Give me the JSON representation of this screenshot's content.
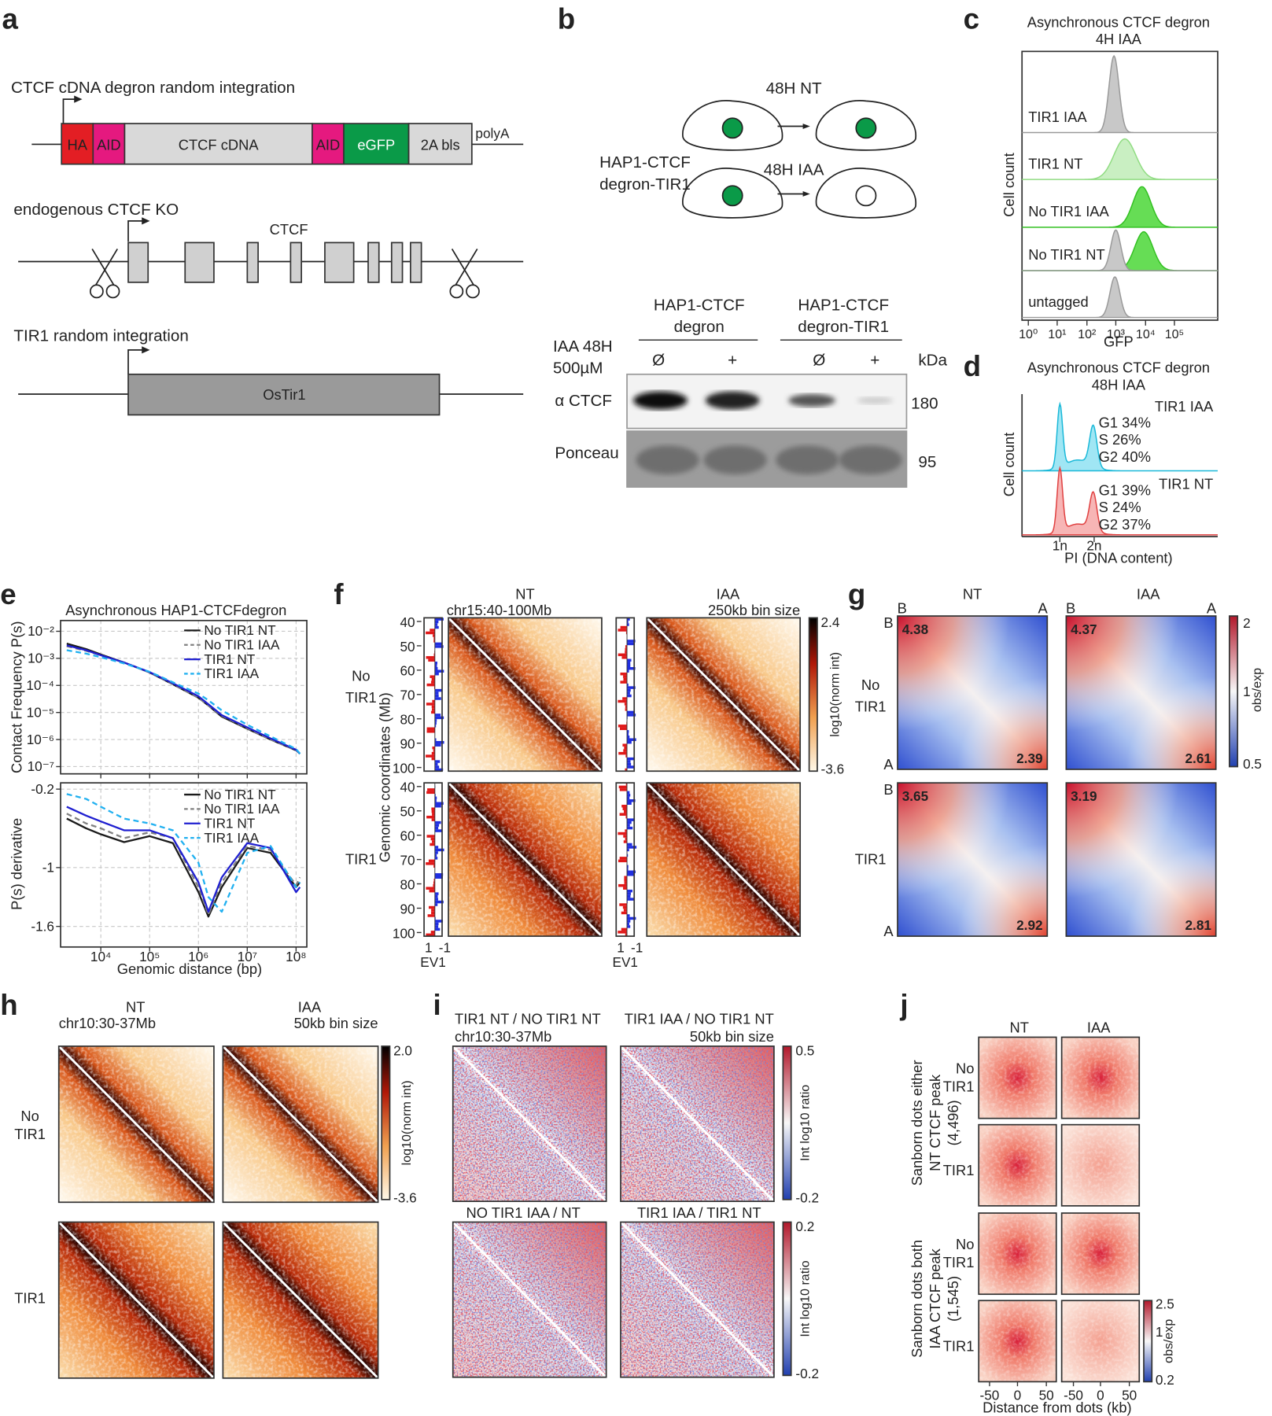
{
  "panels": {
    "a": {
      "label": "a",
      "cdna_title": "CTCF cDNA degron random integration",
      "cdna_parts": [
        "HA",
        "AID",
        "CTCF cDNA",
        "AID",
        "eGFP",
        "2A bls"
      ],
      "polyA": "polyA",
      "ko_title": "endogenous CTCF KO",
      "gene": "CTCF",
      "tir1_title": "TIR1 random integration",
      "tir1_box": "OsTir1"
    },
    "b": {
      "label": "b",
      "nt": "48H NT",
      "iaa": "48H IAA",
      "cell_line": [
        "HAP1-CTCF",
        "degron-TIR1"
      ],
      "lane_groups": [
        [
          "HAP1-CTCF",
          "degron"
        ],
        [
          "HAP1-CTCF",
          "degron-TIR1"
        ]
      ],
      "treatment": [
        "IAA 48H",
        "500µM"
      ],
      "lanes": [
        "Ø",
        "+",
        "Ø",
        "+"
      ],
      "kda": "kDa",
      "rows": [
        "α CTCF",
        "Ponceau"
      ],
      "sizes": [
        "180",
        "95"
      ]
    },
    "c": {
      "label": "c",
      "title": [
        "Asynchronous CTCF degron",
        "4H IAA"
      ],
      "ylabel": "Cell count",
      "xlabel": "GFP",
      "tracks": [
        "TIR1 IAA",
        "TIR1 NT",
        "No TIR1 IAA",
        "No TIR1 NT",
        "untagged"
      ],
      "xticks": [
        "10⁰",
        "10¹",
        "10²",
        "10³",
        "10⁴",
        "10⁵"
      ]
    },
    "d": {
      "label": "d",
      "title": [
        "Asynchronous CTCF degron",
        "48H IAA"
      ],
      "ylabel": "Cell count",
      "xlabel": "PI (DNA content)",
      "xticks": [
        "1n",
        "2n"
      ],
      "tracks": [
        {
          "name": "TIR1 IAA",
          "stats": [
            "G1 34%",
            "S 26%",
            "G2 40%"
          ]
        },
        {
          "name": "TIR1 NT",
          "stats": [
            "G1 39%",
            "S 24%",
            "G2 37%"
          ]
        }
      ]
    },
    "e": {
      "label": "e",
      "title": "Asynchronous HAP1-CTCFdegron",
      "xlabel": "Genomic distance (bp)",
      "log_x": true,
      "grid": true,
      "x": [
        2000,
        5000,
        10000,
        30000,
        100000,
        300000,
        1000000,
        1600000,
        3000000,
        10000000,
        30000000,
        100000000,
        120000000
      ],
      "xlim": [
        1500,
        166000000
      ],
      "xticks": [
        {
          "value": 10000,
          "label": "10⁴"
        },
        {
          "value": 100000,
          "label": "10⁵"
        },
        {
          "value": 1000000,
          "label": "10⁶"
        },
        {
          "value": 10000000,
          "label": "10⁷"
        },
        {
          "value": 100000000,
          "label": "10⁸"
        }
      ],
      "top": {
        "ylabel": "Contact Frequency P(s)",
        "log_y": true,
        "ylim": [
          5.4e-08,
          0.025
        ],
        "yticks": [
          {
            "value": 0.01,
            "label": "10⁻²"
          },
          {
            "value": 0.001,
            "label": "10⁻³"
          },
          {
            "value": 0.0001,
            "label": "10⁻⁴"
          },
          {
            "value": 1e-05,
            "label": "10⁻⁵"
          },
          {
            "value": 1e-06,
            "label": "10⁻⁶"
          },
          {
            "value": 1e-07,
            "label": "10⁻⁷"
          }
        ],
        "series": [
          {
            "name": "No TIR1 NT",
            "color": "#1a1a1a",
            "dash": false,
            "values": [
              0.0035,
              0.0022,
              0.0014,
              0.0007,
              0.0003,
              0.00011,
              3.5e-05,
              1.8e-05,
              7e-06,
              2.5e-06,
              1e-06,
              4e-07,
              3e-07
            ]
          },
          {
            "name": "No TIR1 IAA",
            "color": "#808080",
            "dash": true,
            "values": [
              0.0028,
              0.0019,
              0.0013,
              0.0007,
              0.0003,
              0.00011,
              3.5e-05,
              1.8e-05,
              7.5e-06,
              2.6e-06,
              1e-06,
              4e-07,
              3e-07
            ]
          },
          {
            "name": "TIR1 NT",
            "color": "#1f1fd0",
            "dash": false,
            "values": [
              0.003,
              0.002,
              0.0013,
              0.0007,
              0.00031,
              0.00012,
              4e-05,
              2e-05,
              8e-06,
              2.8e-06,
              1.1e-06,
              4.2e-07,
              3e-07
            ]
          },
          {
            "name": "TIR1 IAA",
            "color": "#20b0f0",
            "dash": true,
            "values": [
              0.002,
              0.0015,
              0.0011,
              0.00065,
              0.00032,
              0.00013,
              5e-05,
              2.8e-05,
              1.2e-05,
              3.5e-06,
              1.3e-06,
              4.5e-07,
              3e-07
            ]
          }
        ]
      },
      "bottom": {
        "ylabel": "P(s) derivative",
        "log_y": false,
        "ylim": [
          -1.81,
          -0.136
        ],
        "yticks": [
          -0.2,
          -1,
          -1.6
        ],
        "series": [
          {
            "name": "No TIR1 NT",
            "color": "#1a1a1a",
            "dash": false,
            "values": [
              -0.5,
              -0.6,
              -0.66,
              -0.74,
              -0.68,
              -0.75,
              -1.25,
              -1.5,
              -1.2,
              -0.8,
              -0.85,
              -1.2,
              -1.15
            ]
          },
          {
            "name": "No TIR1 IAA",
            "color": "#808080",
            "dash": true,
            "values": [
              -0.45,
              -0.55,
              -0.6,
              -0.7,
              -0.64,
              -0.7,
              -1.2,
              -1.48,
              -1.15,
              -0.78,
              -0.82,
              -1.18,
              -1.1
            ]
          },
          {
            "name": "TIR1 NT",
            "color": "#1f1fd0",
            "dash": false,
            "values": [
              -0.38,
              -0.47,
              -0.53,
              -0.62,
              -0.62,
              -0.7,
              -1.15,
              -1.45,
              -1.1,
              -0.75,
              -0.8,
              -1.25,
              -1.2
            ]
          },
          {
            "name": "TIR1 IAA",
            "color": "#20b0f0",
            "dash": true,
            "values": [
              -0.25,
              -0.3,
              -0.38,
              -0.5,
              -0.55,
              -0.62,
              -0.95,
              -1.3,
              -1.45,
              -0.85,
              -0.78,
              -1.2,
              -1.15
            ]
          }
        ]
      }
    },
    "f": {
      "label": "f",
      "columns": [
        "NT",
        "IAA"
      ],
      "region": "chr15:40-100Mb",
      "bin": "250kb bin size",
      "rows": [
        [
          "No",
          "TIR1"
        ],
        [
          "TIR1"
        ]
      ],
      "ylabel": "Genomic coordinates (Mb)",
      "yticks": [
        40,
        50,
        60,
        70,
        80,
        90,
        100
      ],
      "ylim": [
        38.5,
        101.5
      ],
      "colorbar": {
        "max": "2.4",
        "min": "-3.6",
        "label": "log10(norm int)"
      },
      "ev_ticks": [
        "1",
        "-1"
      ],
      "ev_label": "EV1"
    },
    "g": {
      "label": "g",
      "columns": [
        "NT",
        "IAA"
      ],
      "corners": [
        "B",
        "A"
      ],
      "rows": [
        [
          "No",
          "TIR1"
        ],
        [
          "TIR1"
        ]
      ],
      "strengths": [
        [
          "4.38",
          "2.39"
        ],
        [
          "4.37",
          "2.61"
        ],
        [
          "3.65",
          "2.92"
        ],
        [
          "3.19",
          "2.81"
        ]
      ],
      "colorbar": {
        "ticks": [
          "2",
          "1",
          "0.5"
        ],
        "label": "obs/exp"
      }
    },
    "h": {
      "label": "h",
      "columns": [
        "NT",
        "IAA"
      ],
      "region": "chr10:30-37Mb",
      "bin": "50kb bin size",
      "rows": [
        [
          "No",
          "TIR1"
        ],
        [
          "TIR1"
        ]
      ],
      "colorbar": {
        "max": "2.0",
        "min": "-3.6",
        "label": "log10(norm int)"
      }
    },
    "i": {
      "label": "i",
      "titles": [
        "TIR1 NT / NO TIR1 NT",
        "TIR1 IAA / NO TIR1 NT",
        "NO TIR1 IAA / NT",
        "TIR1 IAA / TIR1 NT"
      ],
      "region": "chr10:30-37Mb",
      "bin": "50kb bin size",
      "colorbars": [
        {
          "max": "0.5",
          "min": "-0.2",
          "label": "Int log10 ratio"
        },
        {
          "max": "0.2",
          "min": "-0.2",
          "label": "Int log10 ratio"
        }
      ]
    },
    "j": {
      "label": "j",
      "columns": [
        "NT",
        "IAA"
      ],
      "groups": [
        [
          "Sanborn dots either",
          "NT CTCF peak",
          "(4,496)"
        ],
        [
          "Sanborn dots both",
          "IAA CTCF peak",
          "(1,545)"
        ]
      ],
      "rows": [
        [
          "No",
          "TIR1"
        ],
        [
          "TIR1"
        ]
      ],
      "colorbar": {
        "ticks": [
          "2.5",
          "1",
          "0.2"
        ],
        "label": "obs/exp"
      },
      "xticks": [
        "-50",
        "0",
        "50"
      ],
      "xlabel": "Distance from dots (kb)"
    }
  }
}
